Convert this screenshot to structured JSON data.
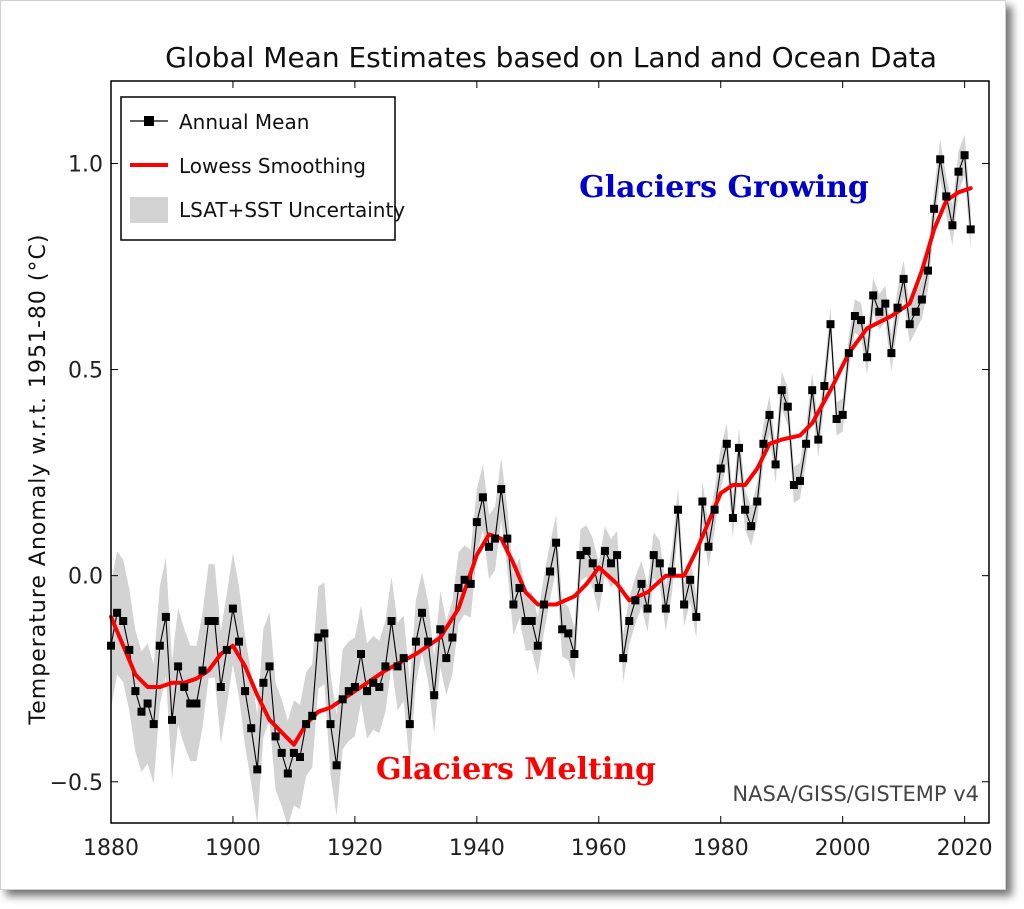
{
  "chart_data": {
    "type": "line",
    "title": "Global Mean Estimates based on Land and Ocean Data",
    "xlabel": "",
    "ylabel": "Temperature Anomaly w.r.t. 1951-80 (°C)",
    "xlim": [
      1880,
      2024
    ],
    "ylim": [
      -0.6,
      1.2
    ],
    "x_ticks": [
      1880,
      1900,
      1920,
      1940,
      1960,
      1980,
      2000,
      2020
    ],
    "y_ticks": [
      -0.5,
      0.0,
      0.5,
      1.0
    ],
    "y_tick_labels": [
      "−0.5",
      "0.0",
      "0.5",
      "1.0"
    ],
    "grid": false,
    "legend_position": "top-left",
    "legend": [
      {
        "label": "Annual Mean",
        "style": "line-square-markers",
        "color": "#000000"
      },
      {
        "label": "Lowess Smoothing",
        "style": "thick-line",
        "color": "#ff0000"
      },
      {
        "label": "LSAT+SST Uncertainty",
        "style": "band",
        "color": "#d3d3d3"
      }
    ],
    "annotations": [
      {
        "text": "Glaciers Growing",
        "color": "#0000cc"
      },
      {
        "text": "Glaciers Melting",
        "color": "#ff0000"
      },
      {
        "text": "NASA/GISS/GISTEMP v4",
        "color": "#444444"
      }
    ],
    "series": [
      {
        "name": "Annual Mean",
        "start_year": 1880,
        "values": [
          -0.17,
          -0.09,
          -0.11,
          -0.18,
          -0.28,
          -0.33,
          -0.31,
          -0.36,
          -0.17,
          -0.1,
          -0.35,
          -0.22,
          -0.27,
          -0.31,
          -0.31,
          -0.23,
          -0.11,
          -0.11,
          -0.27,
          -0.18,
          -0.08,
          -0.16,
          -0.28,
          -0.37,
          -0.47,
          -0.26,
          -0.22,
          -0.39,
          -0.43,
          -0.48,
          -0.43,
          -0.44,
          -0.36,
          -0.34,
          -0.15,
          -0.14,
          -0.36,
          -0.46,
          -0.3,
          -0.28,
          -0.27,
          -0.19,
          -0.28,
          -0.26,
          -0.27,
          -0.22,
          -0.11,
          -0.22,
          -0.2,
          -0.36,
          -0.16,
          -0.09,
          -0.16,
          -0.29,
          -0.13,
          -0.2,
          -0.15,
          -0.03,
          -0.01,
          -0.02,
          0.13,
          0.19,
          0.07,
          0.09,
          0.21,
          0.09,
          -0.07,
          -0.03,
          -0.11,
          -0.11,
          -0.17,
          -0.07,
          0.01,
          0.08,
          -0.13,
          -0.14,
          -0.19,
          0.05,
          0.06,
          0.03,
          -0.03,
          0.06,
          0.03,
          0.05,
          -0.2,
          -0.11,
          -0.06,
          -0.02,
          -0.08,
          0.05,
          0.03,
          -0.08,
          0.01,
          0.16,
          -0.07,
          -0.01,
          -0.1,
          0.18,
          0.07,
          0.16,
          0.26,
          0.32,
          0.14,
          0.31,
          0.16,
          0.12,
          0.18,
          0.32,
          0.39,
          0.27,
          0.45,
          0.41,
          0.22,
          0.23,
          0.32,
          0.45,
          0.33,
          0.46,
          0.61,
          0.38,
          0.39,
          0.54,
          0.63,
          0.62,
          0.53,
          0.68,
          0.64,
          0.66,
          0.54,
          0.65,
          0.72,
          0.61,
          0.64,
          0.67,
          0.74,
          0.89,
          1.01,
          0.92,
          0.85,
          0.98,
          1.02,
          0.84
        ]
      },
      {
        "name": "Lowess Smoothing",
        "x": [
          1880,
          1882,
          1884,
          1886,
          1888,
          1890,
          1892,
          1894,
          1896,
          1898,
          1900,
          1902,
          1904,
          1906,
          1908,
          1910,
          1912,
          1914,
          1916,
          1918,
          1920,
          1925,
          1930,
          1934,
          1937,
          1940,
          1942,
          1944,
          1946,
          1948,
          1950,
          1953,
          1956,
          1958,
          1960,
          1963,
          1965,
          1968,
          1971,
          1974,
          1976,
          1978,
          1980,
          1982,
          1984,
          1986,
          1988,
          1990,
          1993,
          1995,
          1998,
          2001,
          2004,
          2008,
          2011,
          2013,
          2015,
          2017,
          2019,
          2021
        ],
        "y": [
          -0.1,
          -0.17,
          -0.24,
          -0.27,
          -0.27,
          -0.26,
          -0.26,
          -0.25,
          -0.23,
          -0.19,
          -0.17,
          -0.22,
          -0.29,
          -0.35,
          -0.38,
          -0.41,
          -0.36,
          -0.33,
          -0.32,
          -0.3,
          -0.28,
          -0.23,
          -0.19,
          -0.15,
          -0.08,
          0.05,
          0.1,
          0.09,
          0.03,
          -0.04,
          -0.07,
          -0.07,
          -0.05,
          -0.02,
          0.02,
          -0.02,
          -0.06,
          -0.04,
          0.0,
          0.0,
          0.06,
          0.13,
          0.2,
          0.22,
          0.22,
          0.26,
          0.32,
          0.33,
          0.34,
          0.37,
          0.45,
          0.54,
          0.6,
          0.63,
          0.66,
          0.74,
          0.84,
          0.91,
          0.93,
          0.94
        ]
      },
      {
        "name": "LSAT+SST Uncertainty",
        "half_width": [
          [
            1880,
            0.15
          ],
          [
            1920,
            0.12
          ],
          [
            1940,
            0.08
          ],
          [
            1960,
            0.06
          ],
          [
            1980,
            0.05
          ],
          [
            2000,
            0.04
          ],
          [
            2021,
            0.05
          ]
        ]
      }
    ]
  }
}
